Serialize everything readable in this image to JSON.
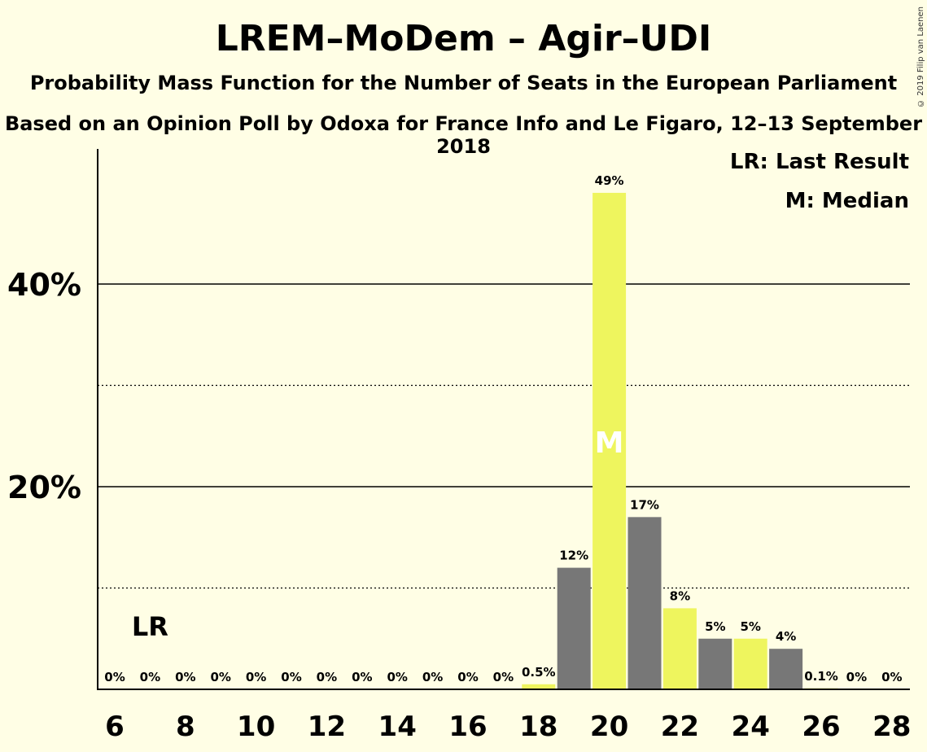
{
  "title": "LREM–MoDem – Agir–UDI",
  "subtitle1": "Probability Mass Function for the Number of Seats in the European Parliament",
  "subtitle2": "Based on an Opinion Poll by Odoxa for France Info and Le Figaro, 12–13 September 2018",
  "copyright": "© 2019 Filip van Laenen",
  "legend": {
    "lr": "LR: Last Result",
    "median": "M: Median"
  },
  "colors": {
    "background": "#FFFEE5",
    "gray": "#777777",
    "yellow": "#EEF55E"
  },
  "chart_data": {
    "type": "bar",
    "x": [
      6,
      7,
      8,
      9,
      10,
      11,
      12,
      13,
      14,
      15,
      16,
      17,
      18,
      19,
      20,
      21,
      22,
      23,
      24,
      25,
      26,
      27,
      28
    ],
    "values": [
      0,
      0,
      0,
      0,
      0,
      0,
      0,
      0,
      0,
      0,
      0,
      0,
      0.5,
      12,
      49,
      17,
      8,
      5,
      5,
      4,
      0.1,
      0,
      0
    ],
    "labels": [
      "0%",
      "0%",
      "0%",
      "0%",
      "0%",
      "0%",
      "0%",
      "0%",
      "0%",
      "0%",
      "0%",
      "0%",
      "0.5%",
      "12%",
      "49%",
      "17%",
      "8%",
      "5%",
      "5%",
      "4%",
      "0.1%",
      "0%",
      "0%"
    ],
    "bar_colors": [
      "#777777",
      "#EEF55E",
      "#777777",
      "#EEF55E",
      "#777777",
      "#EEF55E",
      "#777777",
      "#EEF55E",
      "#777777",
      "#EEF55E",
      "#777777",
      "#EEF55E",
      "#EEF55E",
      "#777777",
      "#EEF55E",
      "#777777",
      "#EEF55E",
      "#777777",
      "#EEF55E",
      "#777777",
      "#EEF55E",
      "#777777",
      "#EEF55E"
    ],
    "x_ticks": [
      6,
      8,
      10,
      12,
      14,
      16,
      18,
      20,
      22,
      24,
      26,
      28
    ],
    "y_ticks_major": [
      20,
      40
    ],
    "y_tick_labels": [
      "20%",
      "40%"
    ],
    "y_ticks_minor": [
      10,
      30
    ],
    "ylim": [
      0,
      53
    ],
    "last_result": {
      "x": 7,
      "label": "LR"
    },
    "median": {
      "x": 20,
      "label": "M"
    }
  }
}
